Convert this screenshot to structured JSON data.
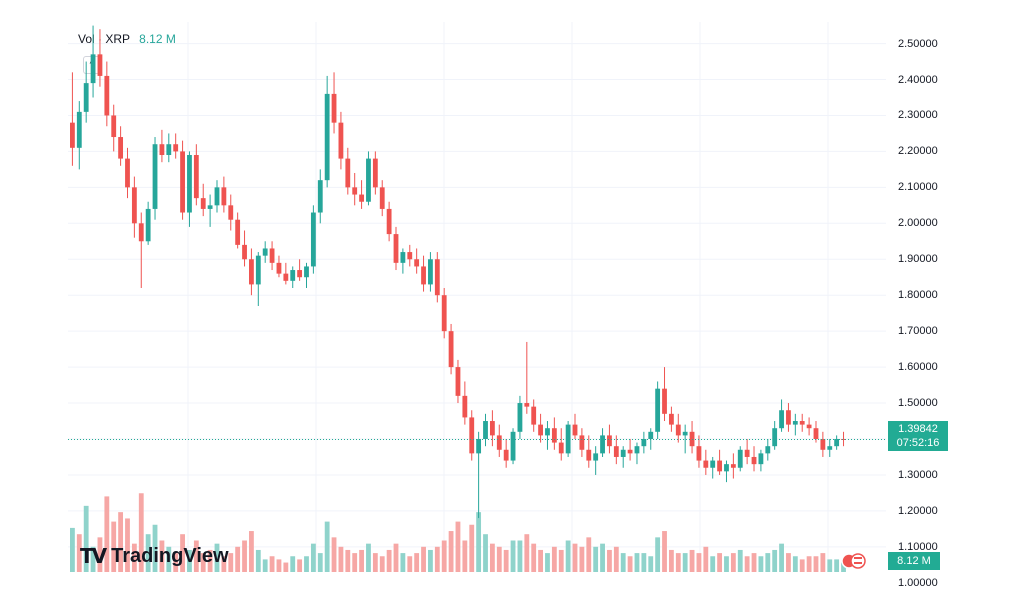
{
  "header": {
    "label": "Vol · XRP",
    "volume": "8.12 M"
  },
  "branding": {
    "logo_text": "TradingView"
  },
  "price_badge": {
    "price": "1.39842",
    "countdown": "07:52:16"
  },
  "volume_badge": "8.12 M",
  "icons": {
    "collapse": "chevron-up-icon",
    "flags": "flag-icon",
    "logo": "tradingview-logo-icon"
  },
  "colors": {
    "up": "#26a69a",
    "down": "#ef5350",
    "up_vol": "#8fd3cb",
    "down_vol": "#f6a7a5",
    "badge": "#22ab94"
  },
  "chart_data": {
    "type": "candlestick",
    "title": "",
    "series_name": "XRP",
    "ylim": [
      1.03,
      2.56
    ],
    "y_ticks": [
      "2.50000",
      "2.40000",
      "2.30000",
      "2.20000",
      "2.10000",
      "2.00000",
      "1.90000",
      "1.80000",
      "1.70000",
      "1.60000",
      "1.50000",
      "1.40000",
      "1.30000",
      "1.20000",
      "1.10000",
      "1.00000"
    ],
    "grid": true,
    "candles": [
      [
        2.28,
        2.42,
        2.16,
        2.21
      ],
      [
        2.21,
        2.34,
        2.15,
        2.31
      ],
      [
        2.31,
        2.45,
        2.28,
        2.39
      ],
      [
        2.39,
        2.55,
        2.35,
        2.47
      ],
      [
        2.47,
        2.54,
        2.38,
        2.41
      ],
      [
        2.41,
        2.45,
        2.27,
        2.3
      ],
      [
        2.3,
        2.33,
        2.2,
        2.24
      ],
      [
        2.24,
        2.27,
        2.16,
        2.18
      ],
      [
        2.18,
        2.21,
        2.07,
        2.1
      ],
      [
        2.1,
        2.13,
        1.96,
        2.0
      ],
      [
        2.0,
        2.03,
        1.82,
        1.95
      ],
      [
        1.95,
        2.06,
        1.94,
        2.04
      ],
      [
        2.04,
        2.24,
        2.01,
        2.22
      ],
      [
        2.22,
        2.26,
        2.17,
        2.19
      ],
      [
        2.19,
        2.25,
        2.17,
        2.22
      ],
      [
        2.22,
        2.25,
        2.18,
        2.2
      ],
      [
        2.2,
        2.23,
        2.01,
        2.03
      ],
      [
        2.03,
        2.2,
        1.99,
        2.19
      ],
      [
        2.19,
        2.22,
        2.05,
        2.07
      ],
      [
        2.07,
        2.11,
        2.02,
        2.04
      ],
      [
        2.04,
        2.08,
        1.99,
        2.05
      ],
      [
        2.05,
        2.12,
        2.03,
        2.1
      ],
      [
        2.1,
        2.13,
        2.03,
        2.05
      ],
      [
        2.05,
        2.08,
        1.98,
        2.01
      ],
      [
        2.01,
        2.03,
        1.93,
        1.94
      ],
      [
        1.94,
        1.98,
        1.88,
        1.9
      ],
      [
        1.9,
        1.93,
        1.8,
        1.83
      ],
      [
        1.83,
        1.92,
        1.77,
        1.91
      ],
      [
        1.91,
        1.95,
        1.89,
        1.93
      ],
      [
        1.93,
        1.95,
        1.87,
        1.89
      ],
      [
        1.89,
        1.91,
        1.85,
        1.86
      ],
      [
        1.86,
        1.89,
        1.83,
        1.84
      ],
      [
        1.84,
        1.88,
        1.82,
        1.87
      ],
      [
        1.87,
        1.9,
        1.84,
        1.85
      ],
      [
        1.85,
        1.89,
        1.82,
        1.88
      ],
      [
        1.88,
        2.05,
        1.86,
        2.03
      ],
      [
        2.03,
        2.15,
        2.0,
        2.12
      ],
      [
        2.12,
        2.41,
        2.1,
        2.36
      ],
      [
        2.36,
        2.42,
        2.25,
        2.28
      ],
      [
        2.28,
        2.31,
        2.15,
        2.18
      ],
      [
        2.18,
        2.21,
        2.08,
        2.1
      ],
      [
        2.1,
        2.14,
        2.05,
        2.08
      ],
      [
        2.08,
        2.12,
        2.04,
        2.06
      ],
      [
        2.06,
        2.2,
        2.05,
        2.18
      ],
      [
        2.18,
        2.2,
        2.08,
        2.1
      ],
      [
        2.1,
        2.12,
        2.02,
        2.04
      ],
      [
        2.04,
        2.06,
        1.95,
        1.97
      ],
      [
        1.97,
        1.99,
        1.87,
        1.89
      ],
      [
        1.89,
        1.93,
        1.86,
        1.92
      ],
      [
        1.92,
        1.94,
        1.88,
        1.9
      ],
      [
        1.9,
        1.93,
        1.86,
        1.88
      ],
      [
        1.88,
        1.91,
        1.81,
        1.83
      ],
      [
        1.83,
        1.92,
        1.81,
        1.9
      ],
      [
        1.9,
        1.92,
        1.78,
        1.8
      ],
      [
        1.8,
        1.82,
        1.68,
        1.7
      ],
      [
        1.7,
        1.72,
        1.58,
        1.6
      ],
      [
        1.6,
        1.62,
        1.5,
        1.52
      ],
      [
        1.52,
        1.56,
        1.44,
        1.46
      ],
      [
        1.46,
        1.48,
        1.34,
        1.36
      ],
      [
        1.36,
        1.42,
        1.18,
        1.4
      ],
      [
        1.4,
        1.47,
        1.38,
        1.45
      ],
      [
        1.45,
        1.48,
        1.38,
        1.41
      ],
      [
        1.41,
        1.44,
        1.35,
        1.37
      ],
      [
        1.37,
        1.4,
        1.32,
        1.34
      ],
      [
        1.34,
        1.43,
        1.33,
        1.42
      ],
      [
        1.42,
        1.52,
        1.4,
        1.5
      ],
      [
        1.5,
        1.67,
        1.47,
        1.49
      ],
      [
        1.49,
        1.51,
        1.42,
        1.44
      ],
      [
        1.44,
        1.47,
        1.39,
        1.41
      ],
      [
        1.41,
        1.45,
        1.37,
        1.43
      ],
      [
        1.43,
        1.46,
        1.37,
        1.39
      ],
      [
        1.39,
        1.43,
        1.34,
        1.36
      ],
      [
        1.36,
        1.45,
        1.35,
        1.44
      ],
      [
        1.44,
        1.47,
        1.4,
        1.41
      ],
      [
        1.41,
        1.43,
        1.35,
        1.37
      ],
      [
        1.37,
        1.41,
        1.32,
        1.34
      ],
      [
        1.34,
        1.38,
        1.3,
        1.36
      ],
      [
        1.36,
        1.43,
        1.35,
        1.41
      ],
      [
        1.41,
        1.44,
        1.36,
        1.38
      ],
      [
        1.38,
        1.41,
        1.33,
        1.35
      ],
      [
        1.35,
        1.38,
        1.32,
        1.37
      ],
      [
        1.37,
        1.4,
        1.34,
        1.36
      ],
      [
        1.36,
        1.39,
        1.33,
        1.38
      ],
      [
        1.38,
        1.42,
        1.36,
        1.4
      ],
      [
        1.4,
        1.43,
        1.37,
        1.42
      ],
      [
        1.42,
        1.56,
        1.4,
        1.54
      ],
      [
        1.54,
        1.6,
        1.45,
        1.47
      ],
      [
        1.47,
        1.49,
        1.42,
        1.44
      ],
      [
        1.44,
        1.47,
        1.39,
        1.41
      ],
      [
        1.41,
        1.44,
        1.36,
        1.42
      ],
      [
        1.42,
        1.45,
        1.36,
        1.38
      ],
      [
        1.38,
        1.41,
        1.32,
        1.34
      ],
      [
        1.34,
        1.37,
        1.3,
        1.32
      ],
      [
        1.32,
        1.35,
        1.29,
        1.34
      ],
      [
        1.34,
        1.37,
        1.3,
        1.31
      ],
      [
        1.31,
        1.34,
        1.28,
        1.33
      ],
      [
        1.33,
        1.36,
        1.29,
        1.32
      ],
      [
        1.32,
        1.38,
        1.31,
        1.37
      ],
      [
        1.37,
        1.4,
        1.33,
        1.35
      ],
      [
        1.35,
        1.38,
        1.31,
        1.33
      ],
      [
        1.33,
        1.37,
        1.31,
        1.36
      ],
      [
        1.36,
        1.4,
        1.34,
        1.38
      ],
      [
        1.38,
        1.45,
        1.37,
        1.43
      ],
      [
        1.43,
        1.51,
        1.42,
        1.48
      ],
      [
        1.48,
        1.5,
        1.42,
        1.44
      ],
      [
        1.44,
        1.47,
        1.41,
        1.45
      ],
      [
        1.45,
        1.47,
        1.42,
        1.44
      ],
      [
        1.44,
        1.46,
        1.41,
        1.43
      ],
      [
        1.43,
        1.45,
        1.39,
        1.4
      ],
      [
        1.4,
        1.42,
        1.35,
        1.37
      ],
      [
        1.37,
        1.4,
        1.35,
        1.38
      ],
      [
        1.38,
        1.41,
        1.37,
        1.4
      ],
      [
        1.4,
        1.42,
        1.38,
        1.398
      ]
    ],
    "volume": [
      [
        0.14,
        1
      ],
      [
        0.12,
        0
      ],
      [
        0.21,
        1
      ],
      [
        0.08,
        1
      ],
      [
        0.11,
        0
      ],
      [
        0.24,
        0
      ],
      [
        0.16,
        0
      ],
      [
        0.19,
        0
      ],
      [
        0.17,
        0
      ],
      [
        0.09,
        0
      ],
      [
        0.25,
        0
      ],
      [
        0.12,
        1
      ],
      [
        0.15,
        1
      ],
      [
        0.1,
        0
      ],
      [
        0.08,
        1
      ],
      [
        0.06,
        0
      ],
      [
        0.12,
        0
      ],
      [
        0.07,
        1
      ],
      [
        0.1,
        0
      ],
      [
        0.06,
        0
      ],
      [
        0.07,
        0
      ],
      [
        0.09,
        1
      ],
      [
        0.05,
        0
      ],
      [
        0.06,
        0
      ],
      [
        0.08,
        0
      ],
      [
        0.1,
        0
      ],
      [
        0.13,
        0
      ],
      [
        0.07,
        1
      ],
      [
        0.04,
        1
      ],
      [
        0.05,
        0
      ],
      [
        0.04,
        0
      ],
      [
        0.03,
        0
      ],
      [
        0.05,
        1
      ],
      [
        0.04,
        0
      ],
      [
        0.05,
        1
      ],
      [
        0.09,
        1
      ],
      [
        0.06,
        1
      ],
      [
        0.16,
        1
      ],
      [
        0.11,
        0
      ],
      [
        0.08,
        0
      ],
      [
        0.07,
        0
      ],
      [
        0.06,
        0
      ],
      [
        0.07,
        0
      ],
      [
        0.09,
        1
      ],
      [
        0.06,
        0
      ],
      [
        0.05,
        0
      ],
      [
        0.07,
        0
      ],
      [
        0.09,
        0
      ],
      [
        0.06,
        1
      ],
      [
        0.05,
        0
      ],
      [
        0.06,
        0
      ],
      [
        0.08,
        0
      ],
      [
        0.07,
        1
      ],
      [
        0.08,
        0
      ],
      [
        0.1,
        0
      ],
      [
        0.13,
        0
      ],
      [
        0.16,
        0
      ],
      [
        0.1,
        0
      ],
      [
        0.15,
        0
      ],
      [
        0.19,
        1
      ],
      [
        0.12,
        1
      ],
      [
        0.09,
        0
      ],
      [
        0.08,
        0
      ],
      [
        0.07,
        0
      ],
      [
        0.1,
        1
      ],
      [
        0.1,
        1
      ],
      [
        0.12,
        0
      ],
      [
        0.09,
        0
      ],
      [
        0.07,
        0
      ],
      [
        0.06,
        1
      ],
      [
        0.08,
        0
      ],
      [
        0.07,
        0
      ],
      [
        0.1,
        1
      ],
      [
        0.09,
        0
      ],
      [
        0.08,
        0
      ],
      [
        0.11,
        0
      ],
      [
        0.08,
        1
      ],
      [
        0.09,
        1
      ],
      [
        0.07,
        0
      ],
      [
        0.08,
        0
      ],
      [
        0.06,
        1
      ],
      [
        0.05,
        0
      ],
      [
        0.06,
        1
      ],
      [
        0.06,
        1
      ],
      [
        0.05,
        1
      ],
      [
        0.11,
        1
      ],
      [
        0.13,
        0
      ],
      [
        0.07,
        0
      ],
      [
        0.06,
        0
      ],
      [
        0.06,
        1
      ],
      [
        0.07,
        0
      ],
      [
        0.06,
        0
      ],
      [
        0.08,
        0
      ],
      [
        0.05,
        1
      ],
      [
        0.06,
        0
      ],
      [
        0.05,
        1
      ],
      [
        0.06,
        0
      ],
      [
        0.07,
        1
      ],
      [
        0.05,
        0
      ],
      [
        0.06,
        0
      ],
      [
        0.05,
        1
      ],
      [
        0.06,
        1
      ],
      [
        0.07,
        1
      ],
      [
        0.09,
        1
      ],
      [
        0.06,
        0
      ],
      [
        0.05,
        1
      ],
      [
        0.04,
        0
      ],
      [
        0.05,
        0
      ],
      [
        0.05,
        0
      ],
      [
        0.06,
        0
      ],
      [
        0.04,
        1
      ],
      [
        0.04,
        1
      ],
      [
        0.03,
        1
      ]
    ],
    "last_price": 1.39842
  }
}
